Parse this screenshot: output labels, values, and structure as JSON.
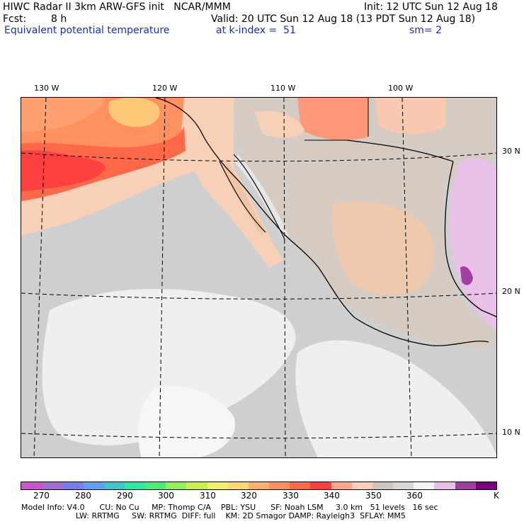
{
  "header": {
    "title_line": "HIWC Radar II 3km ARW-GFS init   NCAR/MMM",
    "init": "Init: 12 UTC Sun 12 Aug 18",
    "fcst_label": "Fcst:",
    "fcst_value": "8 h",
    "valid": "Valid: 20 UTC Sun 12 Aug 18 (13 PDT Sun 12 Aug 18)",
    "field_name": "Equivalent potential temperature",
    "level": "at k-index =  51",
    "smoothing": "sm= 2"
  },
  "map": {
    "longitude_labels": [
      "130 W",
      "120 W",
      "110 W",
      "100 W"
    ],
    "latitude_labels": [
      "30 N",
      "20 N",
      "10 N"
    ]
  },
  "colorbar": {
    "colors": [
      "#c856c8",
      "#a070d0",
      "#7d7de8",
      "#5fa0f0",
      "#40c8c8",
      "#30e8a0",
      "#50e878",
      "#90ee60",
      "#c8f050",
      "#f0f070",
      "#ffd878",
      "#ffb070",
      "#ff9060",
      "#ff6848",
      "#ff4040",
      "#ffa890",
      "#f8d0b8",
      "#d0c8c0",
      "#d8d8d8",
      "#f4f4f4",
      "#e8c0e8",
      "#a040a0",
      "#780078"
    ],
    "tick_labels": [
      "270",
      "280",
      "290",
      "300",
      "310",
      "320",
      "330",
      "340",
      "350",
      "360"
    ],
    "unit": "K"
  },
  "footer": {
    "line1": "Model Info: V4.0      CU: No Cu     MP: Thomp C/A    PBL: YSU      SF: Noah LSM     3.0 km   51 levels   16 sec",
    "line2": "                      LW: RRTMG     SW: RRTMG  DIFF: full    KM: 2D Smagor DAMP: Rayleigh3  SFLAY: MM5"
  }
}
